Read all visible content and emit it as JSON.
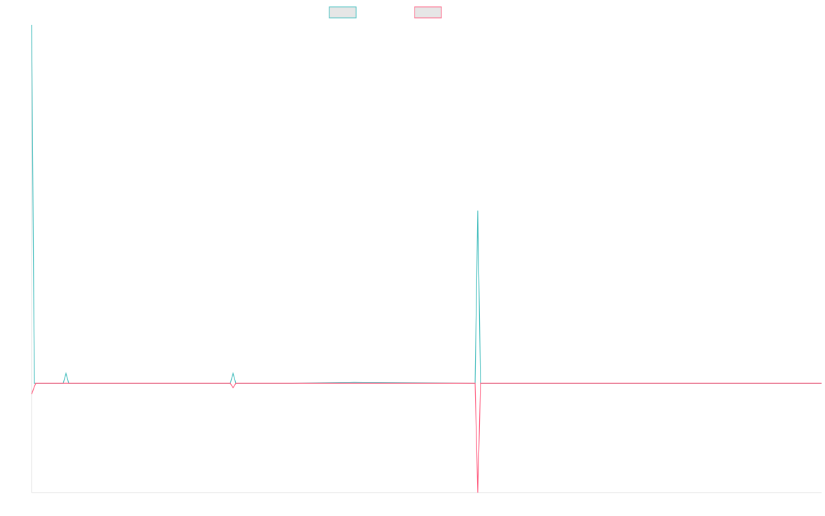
{
  "chart_data": {
    "type": "line",
    "x": [
      0,
      0.35,
      0.52,
      4.0,
      4.35,
      4.7,
      22.89,
      25.15,
      25.5,
      25.85,
      32.99,
      40.82,
      56.14,
      56.48,
      56.83,
      100
    ],
    "xlim": [
      0,
      100
    ],
    "ylim": [
      -1,
      3.28
    ],
    "legend": "top",
    "series": [
      {
        "color": "#4bc0c0",
        "values": [
          3.28,
          0,
          0,
          0,
          0.09,
          0,
          0,
          0,
          0.09,
          0,
          0,
          0.01,
          0,
          1.58,
          0,
          0
        ]
      },
      {
        "color": "#ff6384",
        "values": [
          -0.1,
          -0.03,
          0,
          0,
          0,
          0,
          0,
          0,
          -0.04,
          0,
          0,
          0,
          0,
          -1,
          0,
          0
        ]
      }
    ]
  }
}
